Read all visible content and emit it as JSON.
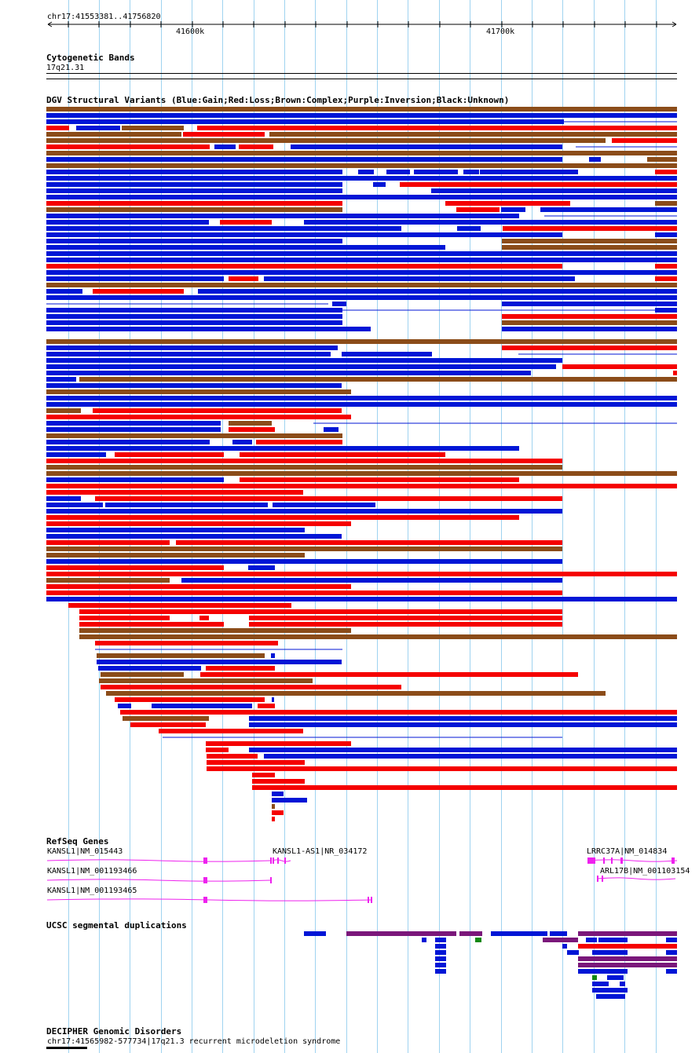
{
  "ruler": {
    "location": "chr17:41553381..41756820",
    "start": 41553381,
    "end": 41756820,
    "ticks": [
      {
        "label": "41600k",
        "pos": 41600000
      },
      {
        "label": "41700k",
        "pos": 41700000
      }
    ]
  },
  "cytobands": {
    "title": "Cytogenetic Bands",
    "band": "17q21.31"
  },
  "dgv": {
    "title": "DGV Structural Variants (Blue:Gain;Red:Loss;Brown:Complex;Purple:Inversion;Black:Unknown)",
    "colors": {
      "gain": "#0016d6",
      "loss": "#f50000",
      "complex": "#8b4c19",
      "inversion": "#800080",
      "unknown": "#000000"
    }
  },
  "refseq": {
    "title": "RefSeq Genes",
    "genes": [
      {
        "label": "KANSL1|NM_015443"
      },
      {
        "label": "KANSL1|NM_001193466"
      },
      {
        "label": "KANSL1|NM_001193465"
      },
      {
        "label": "KANSL1-AS1|NR_034172"
      },
      {
        "label": "LRRC37A|NM_014834"
      },
      {
        "label": "ARL17B|NM_001103154"
      }
    ],
    "color": "#ee22ee"
  },
  "segdups": {
    "title": "UCSC segmental duplications",
    "colors": {
      "blue": "#0016d6",
      "purple": "#7a177a",
      "green": "#118811"
    }
  },
  "decipher": {
    "title": "DECIPHER Genomic Disorders",
    "entry": "chr17:41565982-577734|17q21.3 recurrent microdeletion syndrome"
  }
}
